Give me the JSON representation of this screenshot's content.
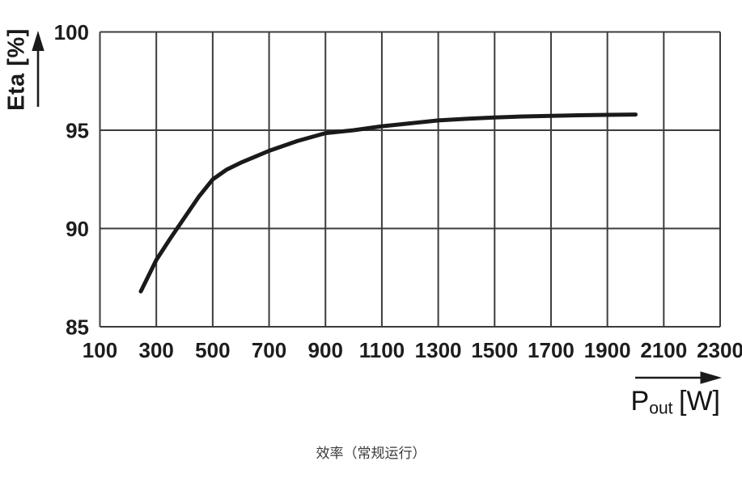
{
  "figure": {
    "caption": "效率（常规运行）",
    "ylabel": "Eta [%]",
    "xlabel_parts": {
      "base": "P",
      "sub": "out",
      "unit": "[W]"
    }
  },
  "chart_data": {
    "type": "line",
    "title": "效率（常规运行）",
    "xlabel": "Pout [W]",
    "ylabel": "Eta [%]",
    "xlim": [
      100,
      2300
    ],
    "ylim": [
      85,
      100
    ],
    "x_ticks": [
      100,
      300,
      500,
      700,
      900,
      1100,
      1300,
      1500,
      1700,
      1900,
      2100,
      2300
    ],
    "y_ticks": [
      100,
      95,
      90,
      85
    ],
    "grid": true,
    "legend": "none",
    "series": [
      {
        "name": "efficiency",
        "x": [
          245,
          300,
          350,
          400,
          450,
          500,
          550,
          600,
          650,
          700,
          800,
          900,
          1000,
          1100,
          1200,
          1300,
          1400,
          1500,
          1600,
          1700,
          1800,
          1900,
          2000
        ],
        "y": [
          86.8,
          88.4,
          89.5,
          90.55,
          91.6,
          92.5,
          93.0,
          93.35,
          93.65,
          93.95,
          94.45,
          94.85,
          95.0,
          95.2,
          95.35,
          95.5,
          95.58,
          95.65,
          95.7,
          95.73,
          95.76,
          95.78,
          95.8
        ]
      }
    ],
    "colors": {
      "curve": "#1a1a1a",
      "grid": "#3c3c3c",
      "tick_text": "#1d1d1d",
      "axis_arrow": "#1a1a1a",
      "caption_text": "#3a3a3a",
      "background": "#ffffff"
    }
  }
}
